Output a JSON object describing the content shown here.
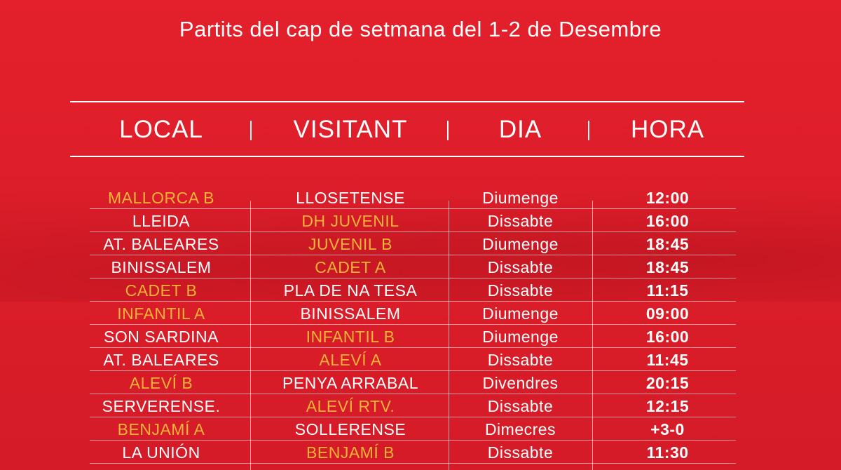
{
  "title": "Partits del cap de setmana del 1-2 de Desembre",
  "colors": {
    "background": "#dd1e2a",
    "highlight": "#f6b338",
    "text": "#ffffff"
  },
  "headers": {
    "local": "LOCAL",
    "visitant": "VISITANT",
    "dia": "DIA",
    "hora": "HORA"
  },
  "matches": [
    {
      "local": "MALLORCA B",
      "visitant": "LLOSETENSE",
      "dia": "Diumenge",
      "hora": "12:00",
      "highlight": "local"
    },
    {
      "local": "LLEIDA",
      "visitant": "DH JUVENIL",
      "dia": "Dissabte",
      "hora": "16:00",
      "highlight": "visitant"
    },
    {
      "local": "AT. BALEARES",
      "visitant": "JUVENIL B",
      "dia": "Diumenge",
      "hora": "18:45",
      "highlight": "visitant"
    },
    {
      "local": "BINISSALEM",
      "visitant": "CADET A",
      "dia": "Dissabte",
      "hora": "18:45",
      "highlight": "visitant"
    },
    {
      "local": "CADET B",
      "visitant": "PLA DE NA TESA",
      "dia": "Dissabte",
      "hora": "11:15",
      "highlight": "local"
    },
    {
      "local": "INFANTIL A",
      "visitant": "BINISSALEM",
      "dia": "Diumenge",
      "hora": "09:00",
      "highlight": "local"
    },
    {
      "local": "SON SARDINA",
      "visitant": "INFANTIL B",
      "dia": "Diumenge",
      "hora": "16:00",
      "highlight": "visitant"
    },
    {
      "local": "AT. BALEARES",
      "visitant": "ALEVÍ A",
      "dia": "Dissabte",
      "hora": "11:45",
      "highlight": "visitant"
    },
    {
      "local": "ALEVÍ B",
      "visitant": "PENYA ARRABAL",
      "dia": "Divendres",
      "hora": "20:15",
      "highlight": "local"
    },
    {
      "local": "SERVERENSE.",
      "visitant": "ALEVÍ RTV.",
      "dia": "Dissabte",
      "hora": "12:15",
      "highlight": "visitant"
    },
    {
      "local": "BENJAMÍ A",
      "visitant": "SOLLERENSE",
      "dia": "Dimecres",
      "hora": "+3-0",
      "highlight": "local"
    },
    {
      "local": "LA UNIÓN",
      "visitant": "BENJAMÍ B",
      "dia": "Dissabte",
      "hora": "11:30",
      "highlight": "visitant"
    }
  ]
}
